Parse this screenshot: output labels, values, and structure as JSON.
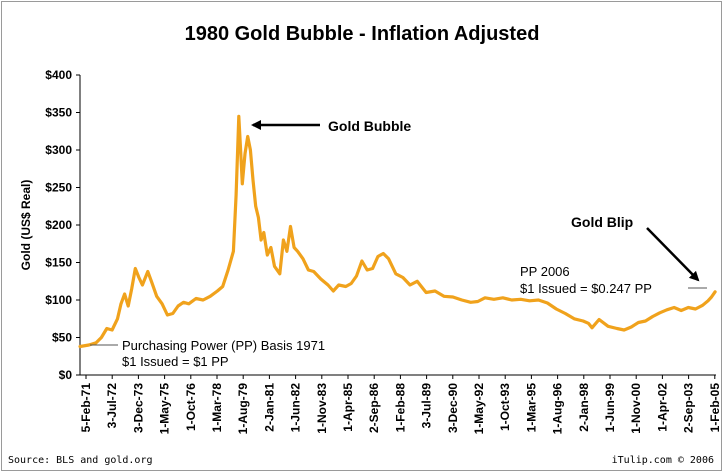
{
  "chart_data": {
    "type": "line",
    "title": "1980 Gold Bubble - Inflation Adjusted",
    "ylabel": "Gold (US$ Real)",
    "xlabel": "",
    "ylim": [
      0,
      400
    ],
    "y_ticks": [
      "$0",
      "$50",
      "$100",
      "$150",
      "$200",
      "$250",
      "$300",
      "$350",
      "$400"
    ],
    "x_ticks": [
      "5-Feb-71",
      "3-Jul-72",
      "3-Dec-73",
      "1-May-75",
      "1-Oct-76",
      "1-Mar-78",
      "1-Aug-79",
      "2-Jan-81",
      "1-Jun-82",
      "1-Nov-83",
      "1-Apr-85",
      "2-Sep-86",
      "1-Feb-88",
      "3-Jul-89",
      "3-Dec-90",
      "1-May-92",
      "1-Oct-93",
      "1-Mar-95",
      "1-Aug-96",
      "2-Jan-98",
      "1-Jun-99",
      "1-Nov-00",
      "1-Apr-02",
      "2-Sep-03",
      "1-Feb-05"
    ],
    "line_color": "#F0A21C",
    "series": [
      {
        "x": [
          1971.1,
          1971.6,
          1972.0,
          1972.3,
          1972.6,
          1972.9,
          1973.2,
          1973.4,
          1973.6,
          1973.8,
          1974.0,
          1974.2,
          1974.4,
          1974.6,
          1974.9,
          1975.1,
          1975.4,
          1975.7,
          1976.0,
          1976.3,
          1976.6,
          1976.9,
          1977.2,
          1977.6,
          1978.0,
          1978.4,
          1978.8,
          1979.1,
          1979.4,
          1979.7,
          1979.85,
          1980.0,
          1980.1,
          1980.2,
          1980.35,
          1980.5,
          1980.65,
          1980.8,
          1980.95,
          1981.1,
          1981.25,
          1981.4,
          1981.6,
          1981.8,
          1982.0,
          1982.3,
          1982.5,
          1982.7,
          1982.9,
          1983.1,
          1983.3,
          1983.6,
          1983.9,
          1984.2,
          1984.6,
          1985.0,
          1985.3,
          1985.6,
          1986.0,
          1986.3,
          1986.6,
          1986.9,
          1987.2,
          1987.5,
          1987.8,
          1988.1,
          1988.4,
          1988.8,
          1989.2,
          1989.6,
          1990.0,
          1990.5,
          1991.0,
          1991.5,
          1992.0,
          1992.5,
          1993.0,
          1993.4,
          1993.8,
          1994.3,
          1994.8,
          1995.3,
          1995.8,
          1996.3,
          1996.8,
          1997.3,
          1997.8,
          1998.3,
          1998.8,
          1999.3,
          1999.6,
          1999.8,
          2000.2,
          2000.7,
          2001.2,
          2001.6,
          2002.0,
          2002.4,
          2002.8,
          2003.2,
          2003.6,
          2004.0,
          2004.4,
          2004.8,
          2005.2,
          2005.6,
          2006.0,
          2006.3,
          2006.5,
          2006.7
        ],
        "y": [
          38,
          40,
          43,
          50,
          62,
          60,
          75,
          95,
          108,
          92,
          115,
          142,
          130,
          120,
          138,
          125,
          105,
          95,
          80,
          82,
          92,
          97,
          95,
          102,
          100,
          105,
          112,
          118,
          140,
          165,
          240,
          345,
          300,
          255,
          295,
          318,
          300,
          260,
          225,
          210,
          180,
          190,
          160,
          170,
          145,
          135,
          180,
          165,
          198,
          170,
          165,
          155,
          140,
          138,
          128,
          120,
          112,
          120,
          118,
          122,
          132,
          152,
          140,
          142,
          158,
          162,
          155,
          135,
          130,
          120,
          125,
          110,
          112,
          105,
          104,
          100,
          97,
          98,
          103,
          101,
          103,
          100,
          101,
          99,
          100,
          96,
          88,
          82,
          75,
          72,
          69,
          63,
          74,
          65,
          62,
          60,
          64,
          70,
          72,
          78,
          83,
          87,
          90,
          86,
          90,
          88,
          93,
          99,
          104,
          111
        ]
      }
    ],
    "annotations": {
      "bubble": "Gold Bubble",
      "blip": "Gold Blip",
      "pp_1971_line1": "Purchasing Power (PP) Basis 1971",
      "pp_1971_line2": "$1 Issued = $1 PP",
      "pp_2006_line1": "PP 2006",
      "pp_2006_line2": "$1 Issued = $0.247 PP"
    },
    "source": "Source: BLS and gold.org",
    "credit": "iTulip.com © 2006"
  }
}
